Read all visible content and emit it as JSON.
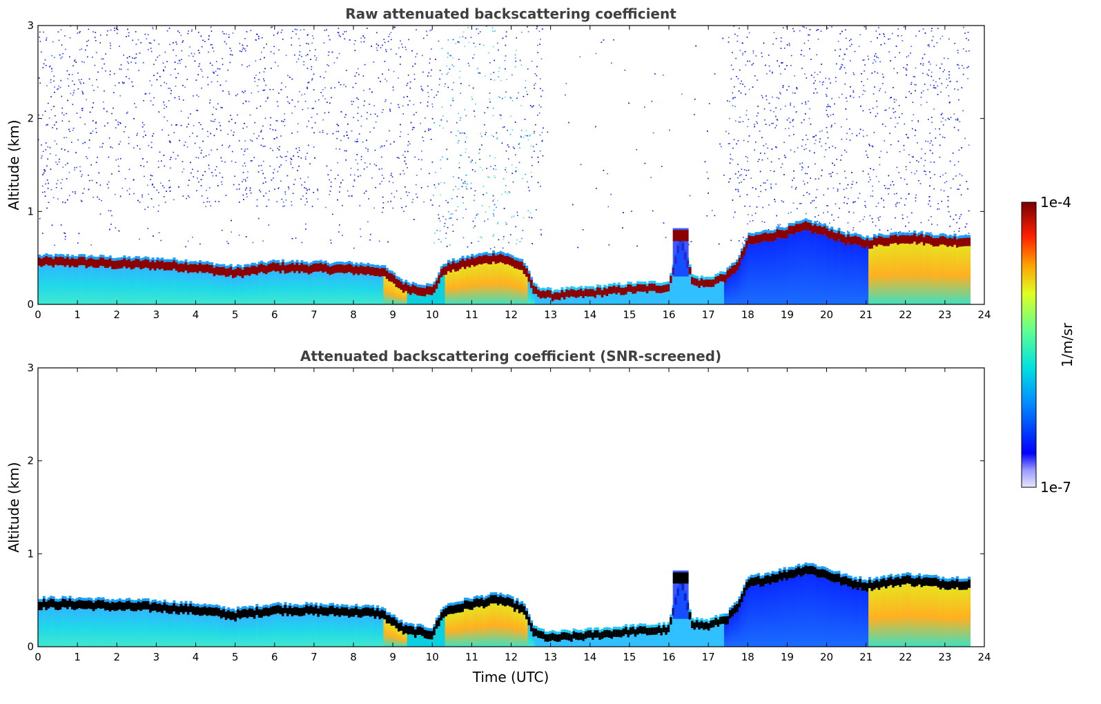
{
  "chart_data": [
    {
      "type": "heatmap",
      "title": "Raw attenuated backscattering coefficient",
      "xlabel": "",
      "ylabel": "Altitude (km)",
      "xlim": [
        0,
        24
      ],
      "ylim": [
        0,
        3
      ],
      "xticks": [
        0,
        1,
        2,
        3,
        4,
        5,
        6,
        7,
        8,
        9,
        10,
        11,
        12,
        13,
        14,
        15,
        16,
        17,
        18,
        19,
        20,
        21,
        22,
        23,
        24
      ],
      "yticks": [
        0,
        1,
        2,
        3
      ],
      "variant": "raw",
      "data_end_time": 23.6,
      "layer_top_km": [
        [
          0,
          0.5
        ],
        [
          1,
          0.5
        ],
        [
          2,
          0.48
        ],
        [
          3,
          0.47
        ],
        [
          4,
          0.44
        ],
        [
          5,
          0.38
        ],
        [
          6,
          0.44
        ],
        [
          7,
          0.43
        ],
        [
          8,
          0.42
        ],
        [
          8.7,
          0.4
        ],
        [
          9.3,
          0.22
        ],
        [
          10,
          0.18
        ],
        [
          10.3,
          0.42
        ],
        [
          11,
          0.5
        ],
        [
          11.7,
          0.55
        ],
        [
          12.3,
          0.45
        ],
        [
          12.6,
          0.18
        ],
        [
          13,
          0.13
        ],
        [
          14,
          0.16
        ],
        [
          15,
          0.2
        ],
        [
          16,
          0.22
        ],
        [
          16.3,
          0.75
        ],
        [
          16.6,
          0.28
        ],
        [
          17,
          0.26
        ],
        [
          17.5,
          0.35
        ],
        [
          17.8,
          0.5
        ],
        [
          18,
          0.72
        ],
        [
          19,
          0.82
        ],
        [
          19.5,
          0.88
        ],
        [
          20,
          0.82
        ],
        [
          20.5,
          0.74
        ],
        [
          21,
          0.7
        ],
        [
          22,
          0.76
        ],
        [
          23,
          0.72
        ],
        [
          23.6,
          0.72
        ]
      ],
      "colorbar": {
        "label": "1/m/sr",
        "max_label": "1e-4",
        "min_label": "1e-7"
      }
    },
    {
      "type": "heatmap",
      "title": "Attenuated backscattering coefficient (SNR-screened)",
      "xlabel": "Time (UTC)",
      "ylabel": "Altitude (km)",
      "xlim": [
        0,
        24
      ],
      "ylim": [
        0,
        3
      ],
      "xticks": [
        0,
        1,
        2,
        3,
        4,
        5,
        6,
        7,
        8,
        9,
        10,
        11,
        12,
        13,
        14,
        15,
        16,
        17,
        18,
        19,
        20,
        21,
        22,
        23,
        24
      ],
      "yticks": [
        0,
        1,
        2,
        3
      ],
      "variant": "screened",
      "data_end_time": 23.6
    }
  ],
  "colors": {
    "layer_raw": "#8b0000",
    "layer_screened": "#000000",
    "noise": "#1e3cff"
  }
}
